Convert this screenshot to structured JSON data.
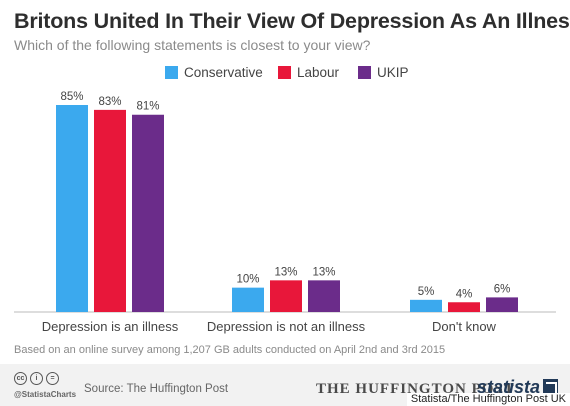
{
  "title": "Britons United In Their View Of Depression As An Illness",
  "subtitle": "Which of the following statements is closest to your view?",
  "legend": [
    {
      "label": "Conservative",
      "color": "#3ba9ee"
    },
    {
      "label": "Labour",
      "color": "#e8173a"
    },
    {
      "label": "UKIP",
      "color": "#6b2c8a"
    }
  ],
  "chart_data": {
    "type": "bar",
    "categories": [
      "Depression is an illness",
      "Depression is not an illness",
      "Don't know"
    ],
    "series": [
      {
        "name": "Conservative",
        "values": [
          85,
          10,
          5
        ],
        "labels": [
          "85%",
          "10%",
          "5%"
        ],
        "color": "#3ba9ee"
      },
      {
        "name": "Labour",
        "values": [
          83,
          13,
          4
        ],
        "labels": [
          "83%",
          "13%",
          "4%"
        ],
        "color": "#e8173a"
      },
      {
        "name": "UKIP",
        "values": [
          81,
          13,
          6
        ],
        "labels": [
          "81%",
          "13%",
          "6%"
        ],
        "color": "#6b2c8a"
      }
    ],
    "ylim": [
      0,
      85
    ],
    "grid": false
  },
  "footnote": "Based on an online survey among 1,207 GB adults conducted on April 2nd and 3rd 2015",
  "footer": {
    "handle": "@StatistaCharts",
    "source": "Source: The Huffington Post",
    "hp_logo": "THE HUFFINGTON POST",
    "statista_logo": "statista",
    "cc_icons": [
      "cc",
      "i",
      "="
    ],
    "credit": "Statista/The Huffington Post UK"
  }
}
